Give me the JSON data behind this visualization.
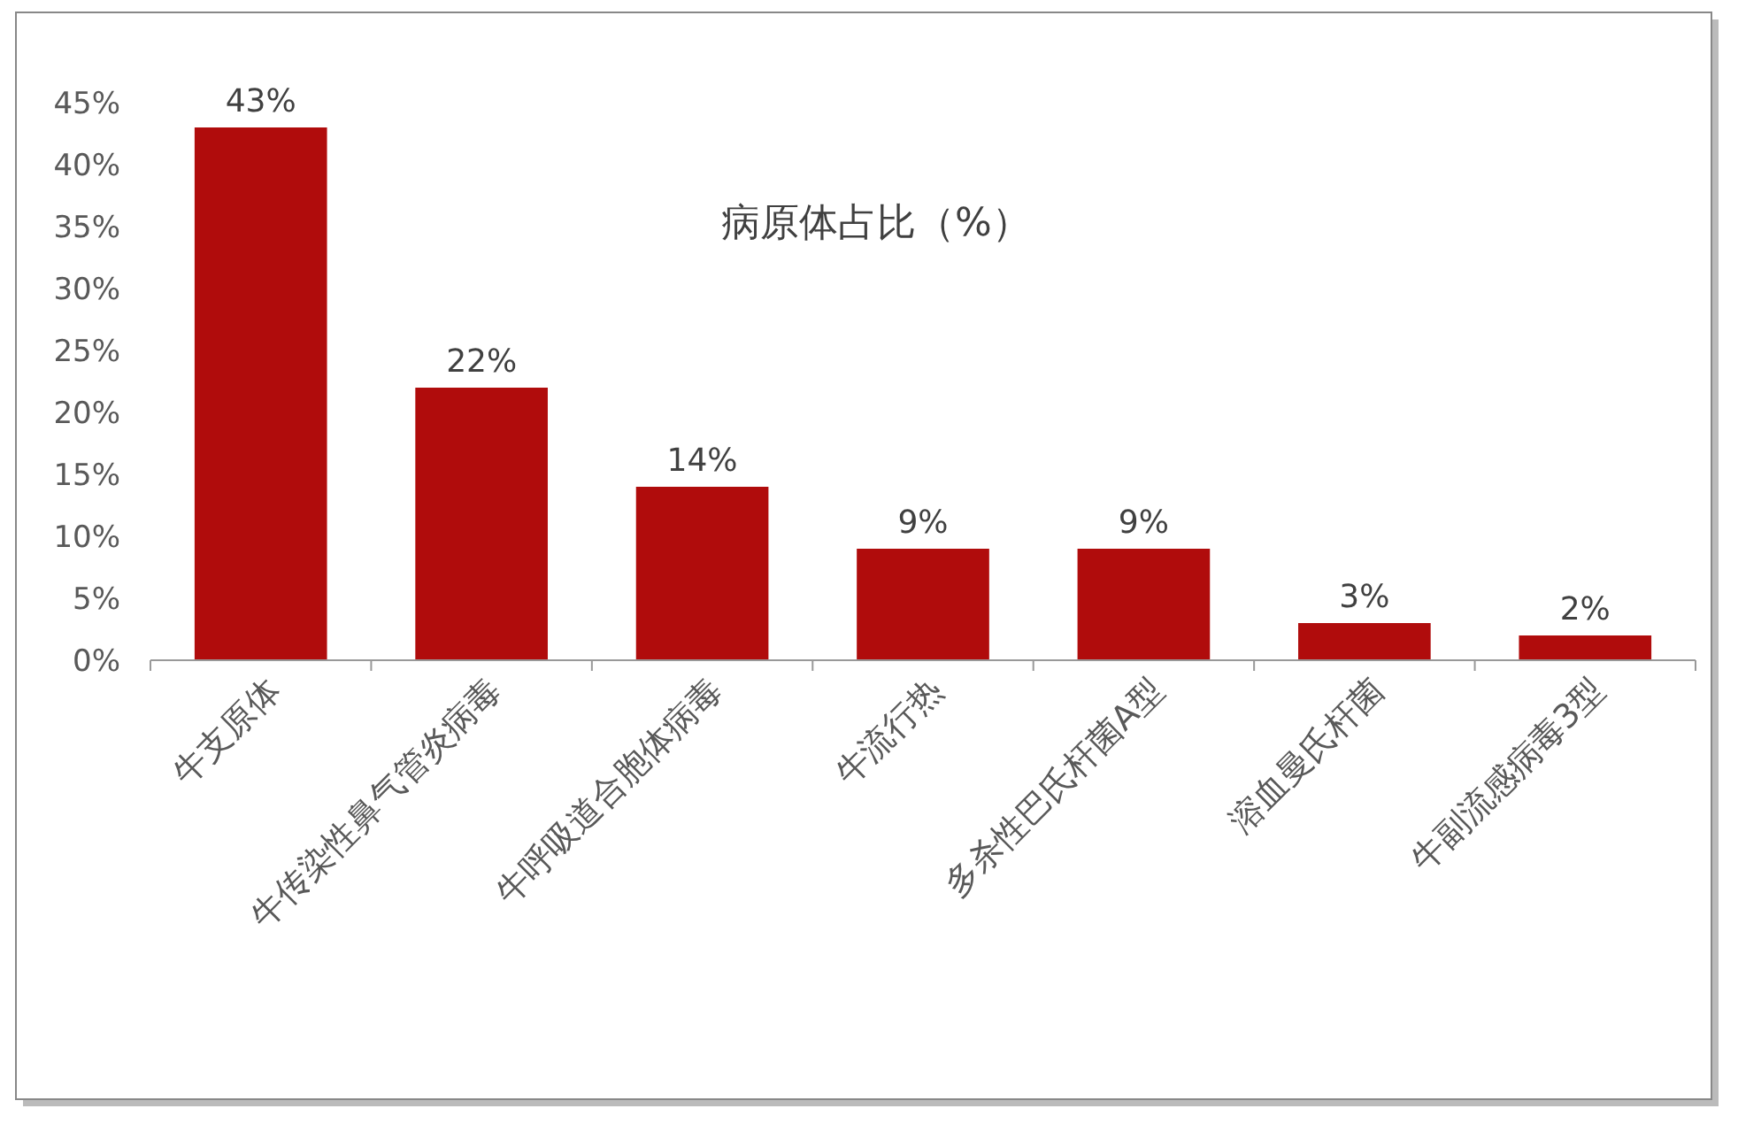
{
  "chart_data": {
    "type": "bar",
    "title": "病原体占比（%）",
    "categories": [
      "牛支原体",
      "牛传染性鼻气管炎病毒",
      "牛呼吸道合胞体病毒",
      "牛流行热",
      "多杀性巴氏杆菌A型",
      "溶血曼氏杆菌",
      "牛副流感病毒3型"
    ],
    "values": [
      43,
      22,
      14,
      9,
      9,
      3,
      2
    ],
    "value_labels": [
      "43%",
      "22%",
      "14%",
      "9%",
      "9%",
      "3%",
      "2%"
    ],
    "color": "#b00c0c",
    "ylim": [
      0,
      45
    ],
    "yticks": [
      {
        "value": 0,
        "label": "0%"
      },
      {
        "value": 5,
        "label": "5%"
      },
      {
        "value": 10,
        "label": "10%"
      },
      {
        "value": 15,
        "label": "15%"
      },
      {
        "value": 20,
        "label": "20%"
      },
      {
        "value": 25,
        "label": "25%"
      },
      {
        "value": 30,
        "label": "30%"
      },
      {
        "value": 35,
        "label": "35%"
      },
      {
        "value": 40,
        "label": "40%"
      },
      {
        "value": 45,
        "label": "45%"
      }
    ]
  }
}
